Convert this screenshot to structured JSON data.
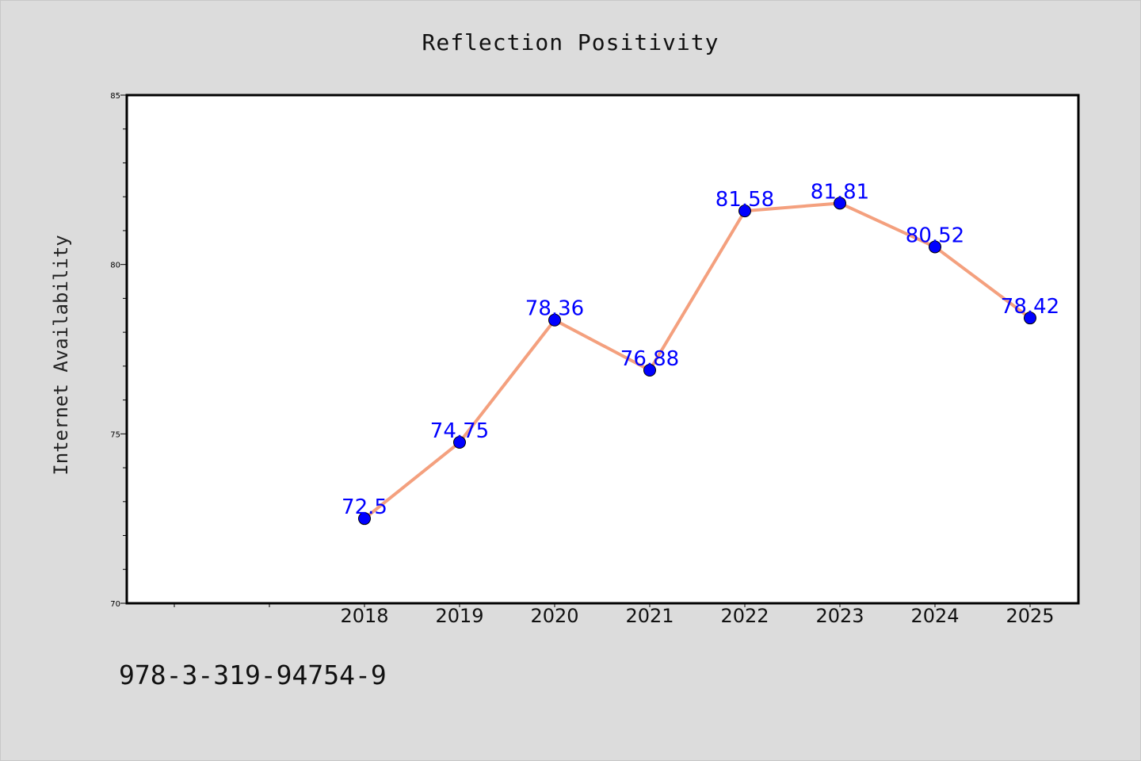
{
  "chart_data": {
    "type": "line",
    "title": "Reflection Positivity",
    "xlabel": "",
    "ylabel": "Internet Availability",
    "categories": [
      "2018",
      "2019",
      "2020",
      "2021",
      "2022",
      "2023",
      "2024",
      "2025"
    ],
    "series": [
      {
        "values": [
          72.5,
          74.75,
          78.36,
          76.88,
          81.58,
          81.81,
          80.52,
          78.42
        ]
      }
    ],
    "data_labels": [
      "72.5",
      "74.75",
      "78.36",
      "76.88",
      "81.58",
      "81.81",
      "80.52",
      "78.42"
    ],
    "ylim": [
      70,
      85
    ],
    "yticks": [
      "70",
      "75",
      "80",
      "85"
    ],
    "grid": false,
    "colors": {
      "line": "#f4a07e",
      "marker": "#0000ff",
      "labels": "#0000ff"
    }
  },
  "caption": "978-3-319-94754-9"
}
